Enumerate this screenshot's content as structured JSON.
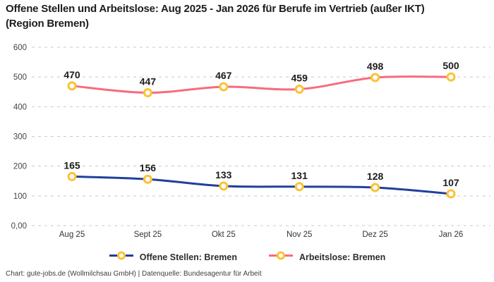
{
  "title": "Offene Stellen und Arbeitslose: Aug 2025 - Jan 2026 für Berufe im Vertrieb (außer IKT) (Region Bremen)",
  "footer": "Chart: gute-jobs.de (Wollmilchsau GmbH) | Datenquelle: Bundesagentur für Arbeit",
  "colors": {
    "blue": "#20409A",
    "pink": "#F76B7F",
    "marker": "#FBC233",
    "grid": "#C9C9C9",
    "text": "#1D1D1D",
    "axis_text": "#444444"
  },
  "chart_data": {
    "type": "line",
    "title": "Offene Stellen und Arbeitslose: Aug 2025 - Jan 2026 für Berufe im Vertrieb (außer IKT) (Region Bremen)",
    "categories": [
      "Aug 25",
      "Sept 25",
      "Okt 25",
      "Nov 25",
      "Dez 25",
      "Jan 26"
    ],
    "series": [
      {
        "name": "Offene Stellen: Bremen",
        "color_key": "blue",
        "values": [
          165,
          156,
          133,
          131,
          128,
          107
        ]
      },
      {
        "name": "Arbeitslose: Bremen",
        "color_key": "pink",
        "values": [
          470,
          447,
          467,
          459,
          498,
          500
        ]
      }
    ],
    "ylim": [
      0,
      600
    ],
    "yticks": [
      0,
      100,
      200,
      300,
      400,
      500,
      600
    ],
    "ytick_labels": [
      "0,00",
      "100",
      "200",
      "300",
      "400",
      "500",
      "600"
    ],
    "grid": "dashed-horizontal",
    "legend_position": "bottom",
    "marker_style": "ring"
  }
}
